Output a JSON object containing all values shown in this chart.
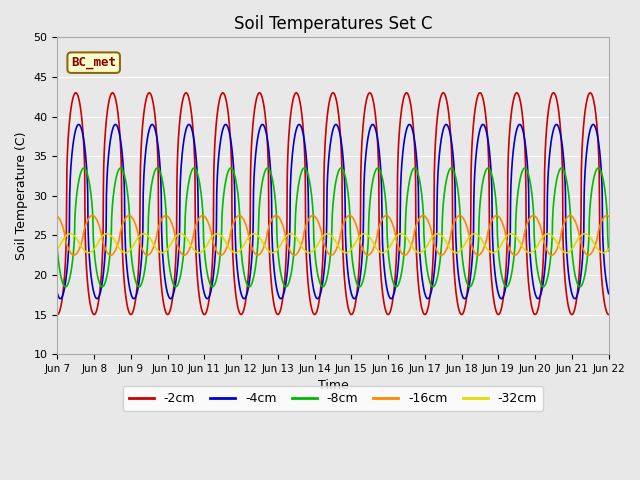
{
  "title": "Soil Temperatures Set C",
  "xlabel": "Time",
  "ylabel": "Soil Temperature (C)",
  "ylim": [
    10,
    50
  ],
  "series_labels": [
    "-2cm",
    "-4cm",
    "-8cm",
    "-16cm",
    "-32cm"
  ],
  "series_colors": [
    "#cc0000",
    "#0000cc",
    "#00bb00",
    "#ff8800",
    "#dddd00"
  ],
  "x_tick_labels": [
    "Jun 7",
    "Jun 8",
    "Jun 9",
    "Jun 10",
    "Jun 11",
    "Jun 12",
    "Jun 13",
    "Jun 14",
    "Jun 15",
    "Jun 16",
    "Jun 17",
    "Jun 18",
    "Jun 19",
    "Jun 20",
    "Jun 21",
    "Jun 22"
  ],
  "annotation_text": "BC_met",
  "plot_bg_color": "#e8e8e8",
  "title_fontsize": 12,
  "axis_fontsize": 9,
  "legend_fontsize": 9
}
